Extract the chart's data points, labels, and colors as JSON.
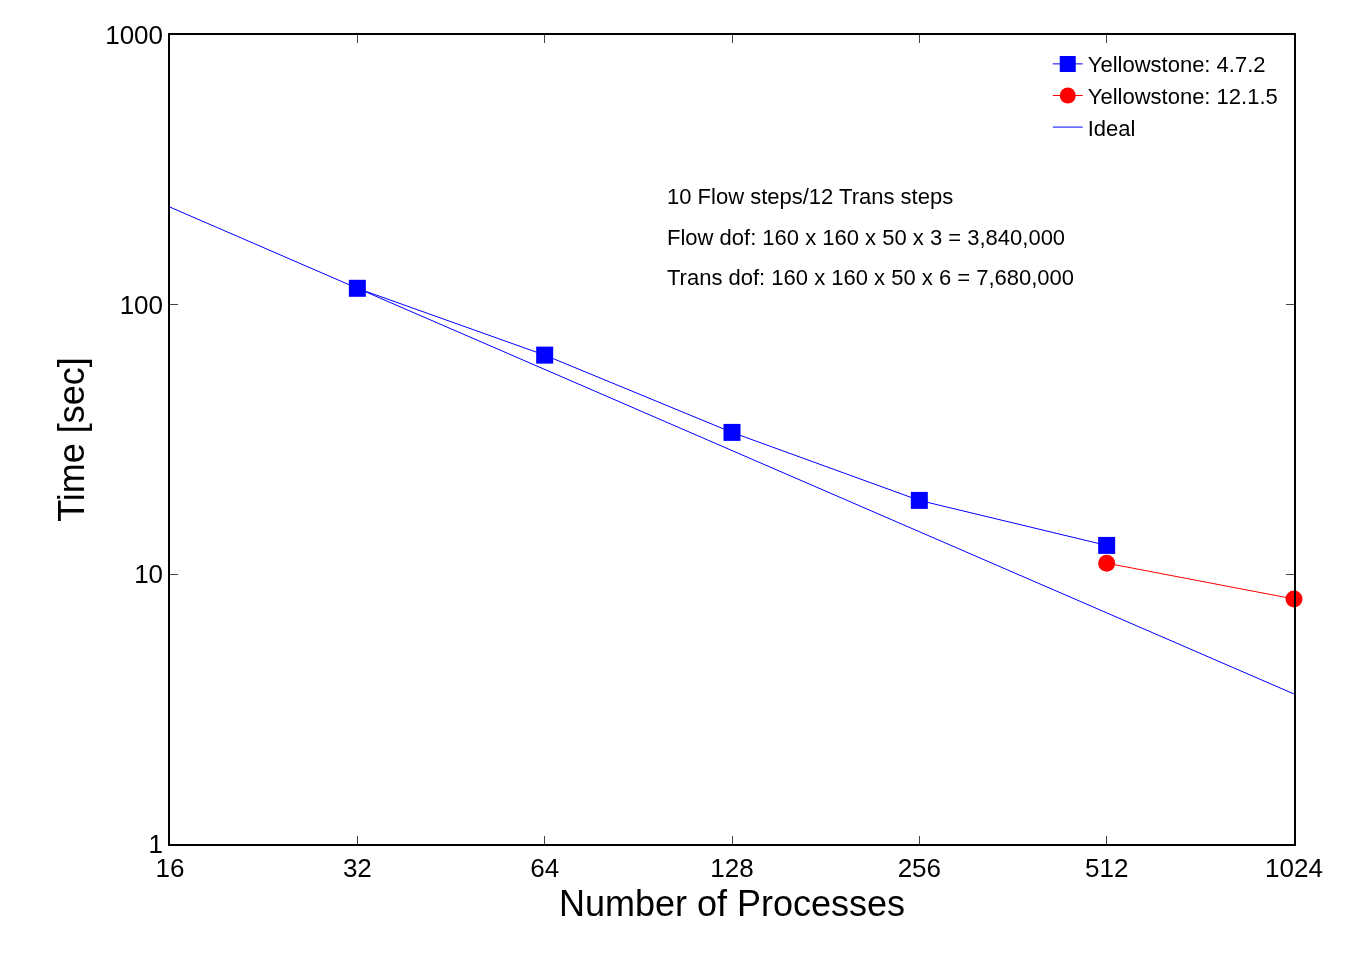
{
  "chart_data": {
    "type": "line",
    "xlabel": "Number of Processes",
    "ylabel": "Time [sec]",
    "series": [
      {
        "name": "Yellowstone: 4.7.2",
        "color": "#0000ff",
        "x": [
          32,
          64,
          128,
          256,
          512
        ],
        "values": [
          115,
          65,
          33.6,
          18.8,
          12.8
        ],
        "marker": "square"
      },
      {
        "name": "Yellowstone: 12.1.5",
        "color": "#ff0000",
        "x": [
          512,
          1024
        ],
        "values": [
          11,
          8.1
        ],
        "marker": "circle"
      },
      {
        "name": "Ideal",
        "color": "#0000ff",
        "x": [
          16,
          1024
        ],
        "values": [
          230,
          3.6
        ],
        "marker": "none"
      }
    ],
    "xlim": [
      16,
      1024
    ],
    "xticks": [
      16,
      32,
      64,
      128,
      256,
      512,
      1024
    ],
    "ylim": [
      1,
      1000
    ],
    "yticks": [
      1,
      10,
      100,
      1000
    ],
    "log": "xy",
    "legend": "top right",
    "line_style": "solid",
    "annotations": [
      "10 Flow steps/12 Trans steps",
      "Flow dof: 160 x 160 x 50 x 3 = 3,840,000",
      "Trans dof: 160 x 160 x 50 x 6 = 7,680,000"
    ]
  }
}
